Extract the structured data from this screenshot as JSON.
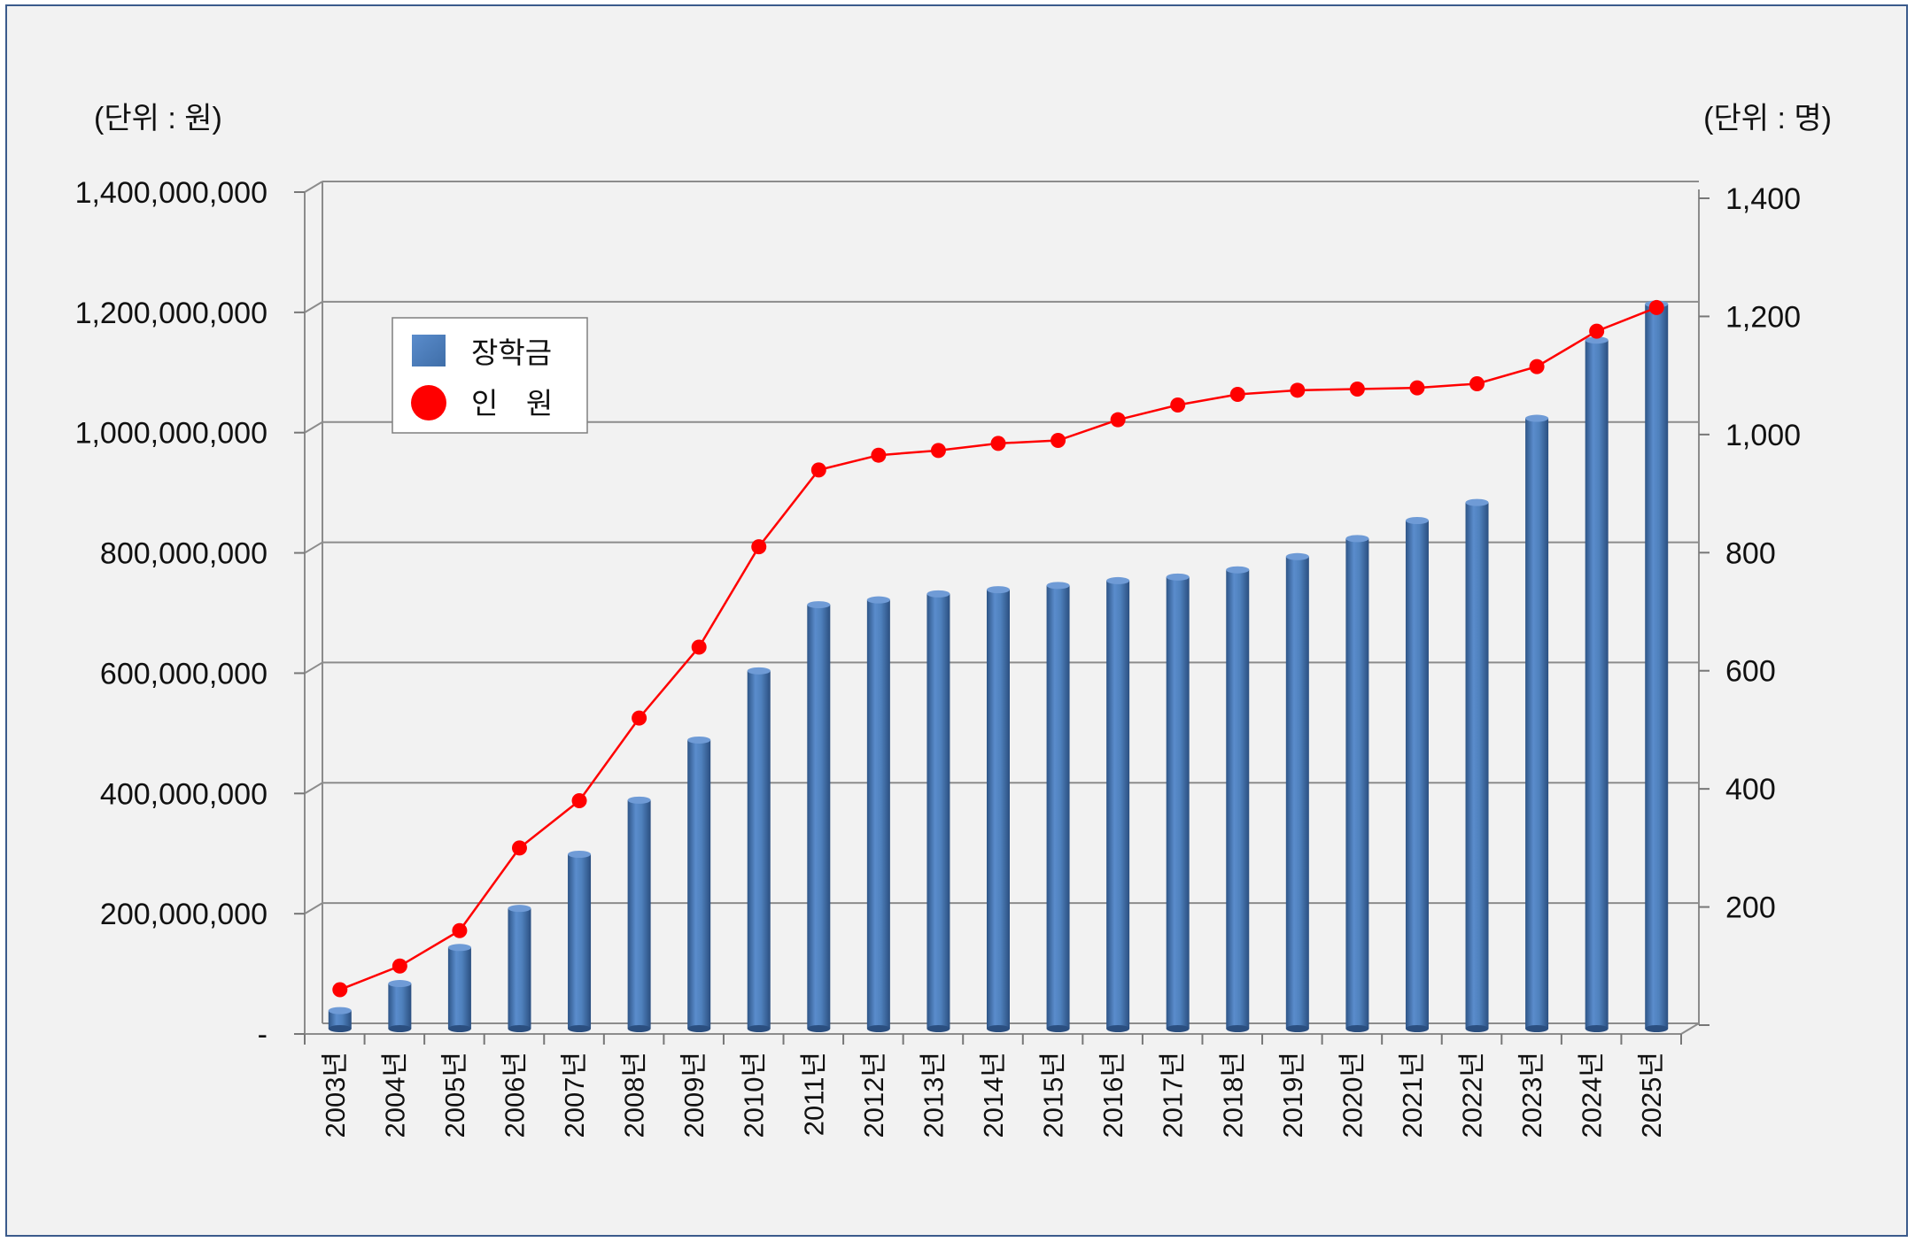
{
  "chart_data": {
    "type": "bar",
    "left_axis_unit": "(단위 : 원)",
    "right_axis_unit": "(단위 : 명)",
    "categories": [
      "2003년",
      "2004년",
      "2005년",
      "2006년",
      "2007년",
      "2008년",
      "2009년",
      "2010년",
      "2011년",
      "2012년",
      "2013년",
      "2014년",
      "2015년",
      "2016년",
      "2017년",
      "2018년",
      "2019년",
      "2020년",
      "2021년",
      "2022년",
      "2023년",
      "2024년",
      "2025년"
    ],
    "left_ylim": [
      0,
      1400000000
    ],
    "left_yticks": [
      "-",
      "200,000,000",
      "400,000,000",
      "600,000,000",
      "800,000,000",
      "1,000,000,000",
      "1,200,000,000",
      "1,400,000,000"
    ],
    "right_ylim": [
      0,
      1400
    ],
    "right_yticks": [
      "",
      "200",
      "400",
      "600",
      "800",
      "1,000",
      "1,200",
      "1,400"
    ],
    "grid": true,
    "legend_position": "top-left",
    "series": [
      {
        "name": "장학금",
        "kind": "bar",
        "axis": "left",
        "color": "#4f81bd",
        "values": [
          30000000,
          75000000,
          135000000,
          200000000,
          290000000,
          380000000,
          480000000,
          595000000,
          705000000,
          713000000,
          723000000,
          730000000,
          737000000,
          745000000,
          751000000,
          763000000,
          785000000,
          815000000,
          845000000,
          875000000,
          1015000000,
          1145000000,
          1205000000
        ]
      },
      {
        "name": "인   원",
        "kind": "line",
        "axis": "right",
        "color": "#ff0000",
        "values": [
          60,
          100,
          160,
          300,
          380,
          520,
          640,
          810,
          940,
          965,
          973,
          985,
          990,
          1025,
          1050,
          1068,
          1075,
          1077,
          1079,
          1086,
          1115,
          1175,
          1215
        ]
      }
    ]
  }
}
